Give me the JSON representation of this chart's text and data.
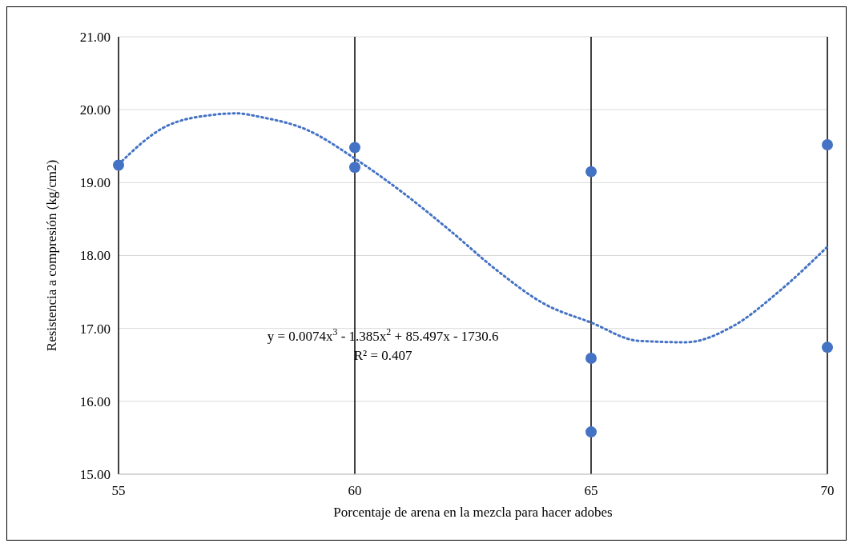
{
  "chart_data": {
    "type": "scatter",
    "xlabel": "Porcentaje de arena en la mezcla para hacer adobes",
    "ylabel": "Resistencia a compresión (kg/cm2)",
    "xlim": [
      55,
      70
    ],
    "ylim": [
      15,
      21
    ],
    "xticks": [
      55,
      60,
      65,
      70
    ],
    "yticks": [
      {
        "value": 15,
        "label": "15.00"
      },
      {
        "value": 16,
        "label": "16.00"
      },
      {
        "value": 17,
        "label": "17.00"
      },
      {
        "value": 18,
        "label": "18.00"
      },
      {
        "value": 19,
        "label": "19.00"
      },
      {
        "value": 20,
        "label": "20.00"
      },
      {
        "value": 21,
        "label": "21.00"
      }
    ],
    "grid": true,
    "marker": "circle",
    "series": [
      {
        "color": "#4472c4",
        "x": [
          55,
          60,
          60,
          65,
          65,
          65,
          70,
          70
        ],
        "values": [
          19.24,
          19.48,
          19.21,
          19.15,
          16.59,
          15.58,
          19.52,
          16.74
        ]
      },
      {
        "type": "line",
        "color": "#4472c4",
        "line_style": "dotted",
        "marker": "none",
        "x": [
          55,
          56,
          57,
          57.5,
          58,
          59,
          60,
          61,
          62,
          63,
          64,
          65,
          66,
          67,
          68,
          69,
          70
        ],
        "values": [
          19.25,
          19.77,
          19.93,
          19.95,
          19.9,
          19.72,
          19.33,
          18.87,
          18.35,
          17.8,
          17.34,
          17.08,
          16.83,
          16.81,
          17.03,
          17.52,
          18.12
        ]
      }
    ],
    "annotations": [
      "y = 0.0074x$^{3}$ - 1.385x$^{2}$ + 85.497x - 1730.6",
      "R² = 0.407"
    ]
  }
}
